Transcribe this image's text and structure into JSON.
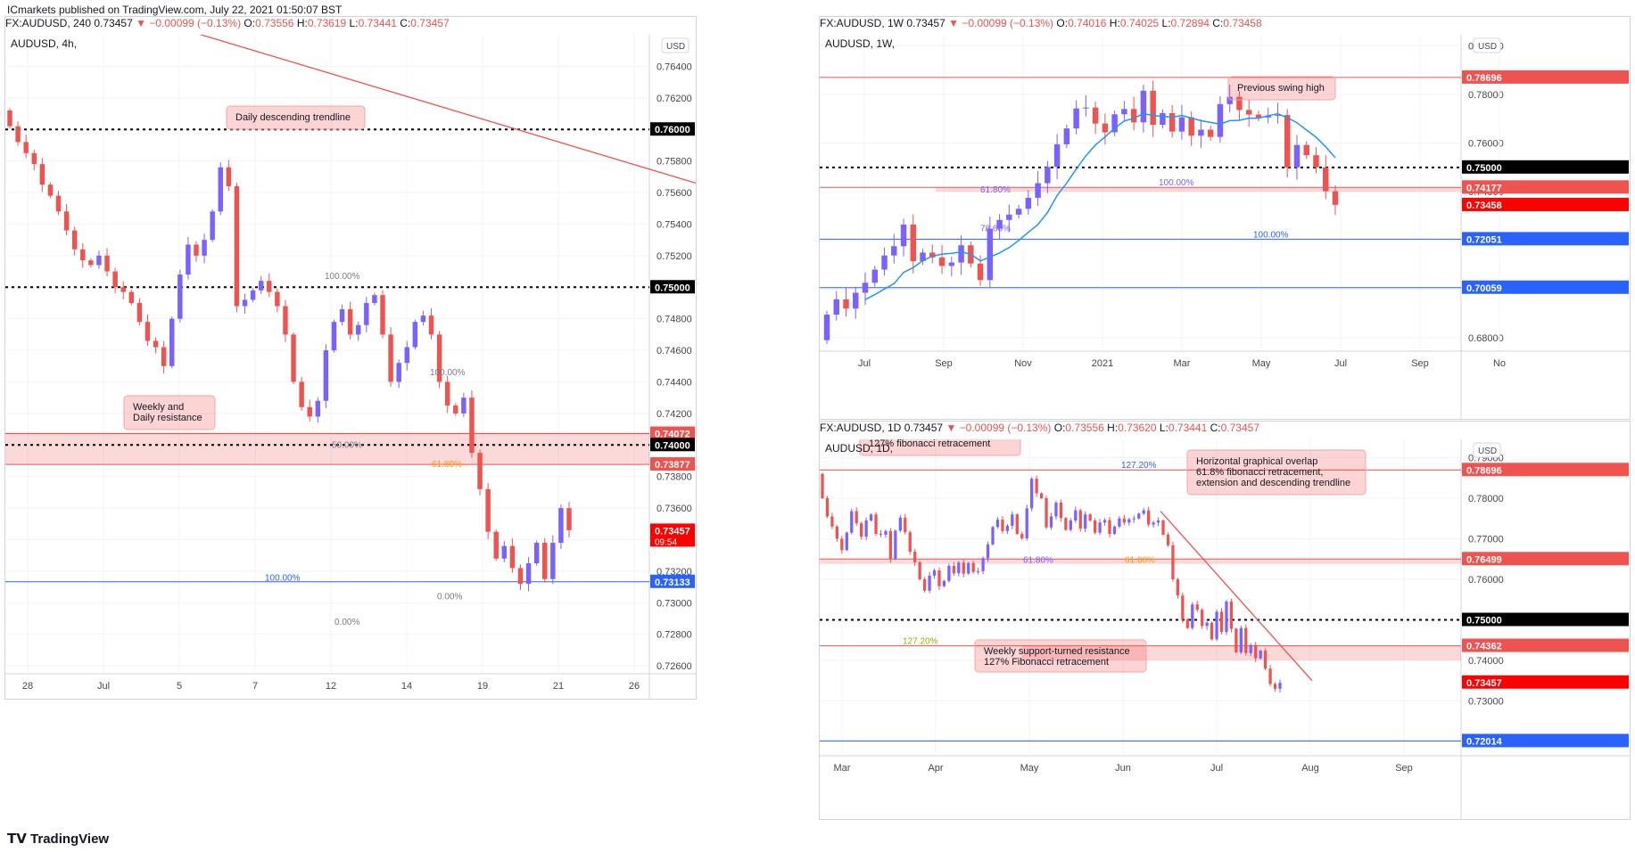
{
  "publisher_line": "ICmarkets published on TradingView.com, July 22, 2021 01:50:07 BST",
  "footer_brand": "TradingView",
  "colors": {
    "up": "#7b61ff",
    "down": "#ef5350",
    "res": "#ef5350",
    "blue": "#2962ff",
    "ma": "#2196f3",
    "grid": "#f0f3fa",
    "zone": "rgba(239,83,80,0.22)"
  },
  "panels": {
    "h4": {
      "ohlc": {
        "symbol": "FX:AUDUSD, 240",
        "last": "0.73457",
        "change": "−0.00099 (−0.13%)",
        "o": "0.73556",
        "h": "0.73619",
        "l": "0.73441",
        "c": "0.73457"
      },
      "chart_data": {
        "type": "candlestick",
        "title": "AUDUSD, 4h,",
        "currency": "USD",
        "ylim": [
          0.7255,
          0.766
        ],
        "y_ticks": [
          0.764,
          0.762,
          0.76,
          0.758,
          0.756,
          0.754,
          0.752,
          0.75,
          0.748,
          0.746,
          0.744,
          0.742,
          0.74,
          0.738,
          0.736,
          0.734,
          0.732,
          0.73,
          0.728,
          0.726
        ],
        "x_ticks": [
          "28",
          "Jul",
          "5",
          "7",
          "12",
          "14",
          "19",
          "21",
          "26"
        ],
        "price_tags": [
          {
            "value": 0.76,
            "label": "0.76000",
            "color": "#000000"
          },
          {
            "value": 0.75,
            "label": "0.75000",
            "color": "#000000"
          },
          {
            "value": 0.74072,
            "label": "0.74072",
            "color": "#ef5350"
          },
          {
            "value": 0.74,
            "label": "0.74000",
            "color": "#000000"
          },
          {
            "value": 0.73877,
            "label": "0.73877",
            "color": "#ef5350"
          },
          {
            "value": 0.73457,
            "label": "0.73457",
            "sub": "09:54",
            "color": "#ff0000"
          },
          {
            "value": 0.73133,
            "label": "0.73133",
            "color": "#2962ff"
          }
        ],
        "fib_labels": [
          "100.00%",
          "100.00%",
          "50.00%",
          "61.80%",
          "100.00%",
          "0.00%",
          "0.00%"
        ],
        "callouts": [
          "Daily descending trendline",
          "Weekly and\nDaily resistance"
        ],
        "closes": [
          0.7602,
          0.7592,
          0.7585,
          0.7578,
          0.7565,
          0.7558,
          0.7548,
          0.7536,
          0.7524,
          0.7517,
          0.7514,
          0.752,
          0.751,
          0.75,
          0.7497,
          0.749,
          0.7478,
          0.7466,
          0.7462,
          0.745,
          0.748,
          0.7508,
          0.7527,
          0.752,
          0.753,
          0.7548,
          0.7576,
          0.7564,
          0.7488,
          0.7492,
          0.7498,
          0.7504,
          0.7497,
          0.7488,
          0.747,
          0.744,
          0.7424,
          0.7418,
          0.7428,
          0.746,
          0.7478,
          0.7486,
          0.747,
          0.7476,
          0.749,
          0.7495,
          0.747,
          0.744,
          0.7452,
          0.7462,
          0.7478,
          0.7482,
          0.747,
          0.744,
          0.7425,
          0.742,
          0.743,
          0.7395,
          0.7372,
          0.7345,
          0.7328,
          0.7336,
          0.7322,
          0.7312,
          0.7325,
          0.7338,
          0.7315,
          0.7338,
          0.736,
          0.7346
        ]
      }
    },
    "w1": {
      "ohlc": {
        "symbol": "FX:AUDUSD, 1W",
        "last": "0.73457",
        "change": "−0.00099 (−0.13%)",
        "o": "0.74016",
        "h": "0.74025",
        "l": "0.72894",
        "c": "0.73458"
      },
      "chart_data": {
        "type": "candlestick",
        "title": "AUDUSD, 1W,",
        "currency": "USD",
        "ylim": [
          0.6745,
          0.8045
        ],
        "y_ticks": [
          0.8,
          0.78,
          0.76,
          0.74,
          0.72,
          0.7,
          0.68
        ],
        "x_ticks": [
          "Jul",
          "Sep",
          "Nov",
          "2021",
          "Mar",
          "May",
          "Jul",
          "Sep",
          "No"
        ],
        "price_tags": [
          {
            "value": 0.78696,
            "label": "0.78696",
            "color": "#ef5350"
          },
          {
            "value": 0.75,
            "label": "0.75000",
            "color": "#000000"
          },
          {
            "value": 0.74177,
            "label": "0.74177",
            "color": "#ef5350"
          },
          {
            "value": 0.73458,
            "label": "0.73458",
            "color": "#ff0000"
          },
          {
            "value": 0.72051,
            "label": "0.72051",
            "color": "#2962ff"
          },
          {
            "value": 0.70059,
            "label": "0.70059",
            "color": "#2962ff"
          }
        ],
        "fib_labels": [
          "61.80%",
          "100.00%",
          "78.60%",
          "100.00%"
        ],
        "callouts": [
          "Previous swing high"
        ],
        "closes": [
          0.6895,
          0.6958,
          0.692,
          0.6985,
          0.7026,
          0.708,
          0.7138,
          0.7176,
          0.7265,
          0.7115,
          0.715,
          0.713,
          0.7095,
          0.7109,
          0.718,
          0.7105,
          0.7037,
          0.7248,
          0.7284,
          0.7306,
          0.733,
          0.7375,
          0.7435,
          0.7502,
          0.7595,
          0.766,
          0.7742,
          0.7746,
          0.768,
          0.7644,
          0.7718,
          0.774,
          0.7685,
          0.7815,
          0.7675,
          0.7723,
          0.7647,
          0.7706,
          0.763,
          0.7655,
          0.7625,
          0.776,
          0.779,
          0.7736,
          0.7717,
          0.7705,
          0.7713,
          0.7715,
          0.75,
          0.7592,
          0.755,
          0.75,
          0.7402,
          0.7346
        ]
      }
    },
    "d1": {
      "ohlc": {
        "symbol": "FX:AUDUSD, 1D",
        "last": "0.73457",
        "change": "−0.00099 (−0.13%)",
        "o": "0.73556",
        "h": "0.73620",
        "l": "0.73441",
        "c": "0.73457"
      },
      "chart_data": {
        "type": "candlestick",
        "title": "AUDUSD, 1D,",
        "currency": "USD",
        "ylim": [
          0.7165,
          0.7945
        ],
        "y_ticks": [
          0.79,
          0.78,
          0.77,
          0.76,
          0.75,
          0.74,
          0.73,
          0.72
        ],
        "x_ticks": [
          "Mar",
          "Apr",
          "May",
          "Jun",
          "Jul",
          "Aug",
          "Sep"
        ],
        "price_tags": [
          {
            "value": 0.78696,
            "label": "0.78696",
            "color": "#ef5350"
          },
          {
            "value": 0.76499,
            "label": "0.76499",
            "color": "#ef5350"
          },
          {
            "value": 0.75,
            "label": "0.75000",
            "color": "#000000"
          },
          {
            "value": 0.74362,
            "label": "0.74362",
            "color": "#ef5350"
          },
          {
            "value": 0.73457,
            "label": "0.73457",
            "color": "#ff0000"
          },
          {
            "value": 0.72014,
            "label": "0.72014",
            "color": "#2962ff"
          }
        ],
        "fib_labels": [
          "127.20%",
          "61.80%",
          "61.80%",
          "127.20%"
        ],
        "callouts": [
          "Horizontal graphical overlap\n61.8% fibonacci retracement,\nextension and descending trendline",
          "Weekly support-turned resistance\n127% Fibonacci retracement",
          "127% fibonacci retracement"
        ],
        "closes": [
          0.78,
          0.7755,
          0.773,
          0.77,
          0.7672,
          0.7715,
          0.7768,
          0.7738,
          0.7705,
          0.7745,
          0.776,
          0.7712,
          0.771,
          0.7719,
          0.765,
          0.772,
          0.7752,
          0.7716,
          0.7668,
          0.7642,
          0.76,
          0.7572,
          0.7609,
          0.7622,
          0.7583,
          0.7596,
          0.7633,
          0.7615,
          0.7641,
          0.7614,
          0.764,
          0.7618,
          0.762,
          0.7652,
          0.7686,
          0.7729,
          0.7747,
          0.7719,
          0.7732,
          0.776,
          0.7712,
          0.7701,
          0.7775,
          0.7848,
          0.7812,
          0.78,
          0.7728,
          0.7755,
          0.7789,
          0.7751,
          0.7722,
          0.7745,
          0.777,
          0.7725,
          0.776,
          0.7745,
          0.7715,
          0.774,
          0.7746,
          0.7712,
          0.773,
          0.775,
          0.774,
          0.7748,
          0.775,
          0.7762,
          0.777,
          0.7735,
          0.774,
          0.7745,
          0.771,
          0.7684,
          0.76,
          0.756,
          0.7501,
          0.748,
          0.7538,
          0.7525,
          0.7485,
          0.7493,
          0.7452,
          0.752,
          0.747,
          0.7545,
          0.7478,
          0.742,
          0.748,
          0.7418,
          0.7438,
          0.7405,
          0.7424,
          0.738,
          0.7342,
          0.733,
          0.7345
        ]
      }
    }
  }
}
